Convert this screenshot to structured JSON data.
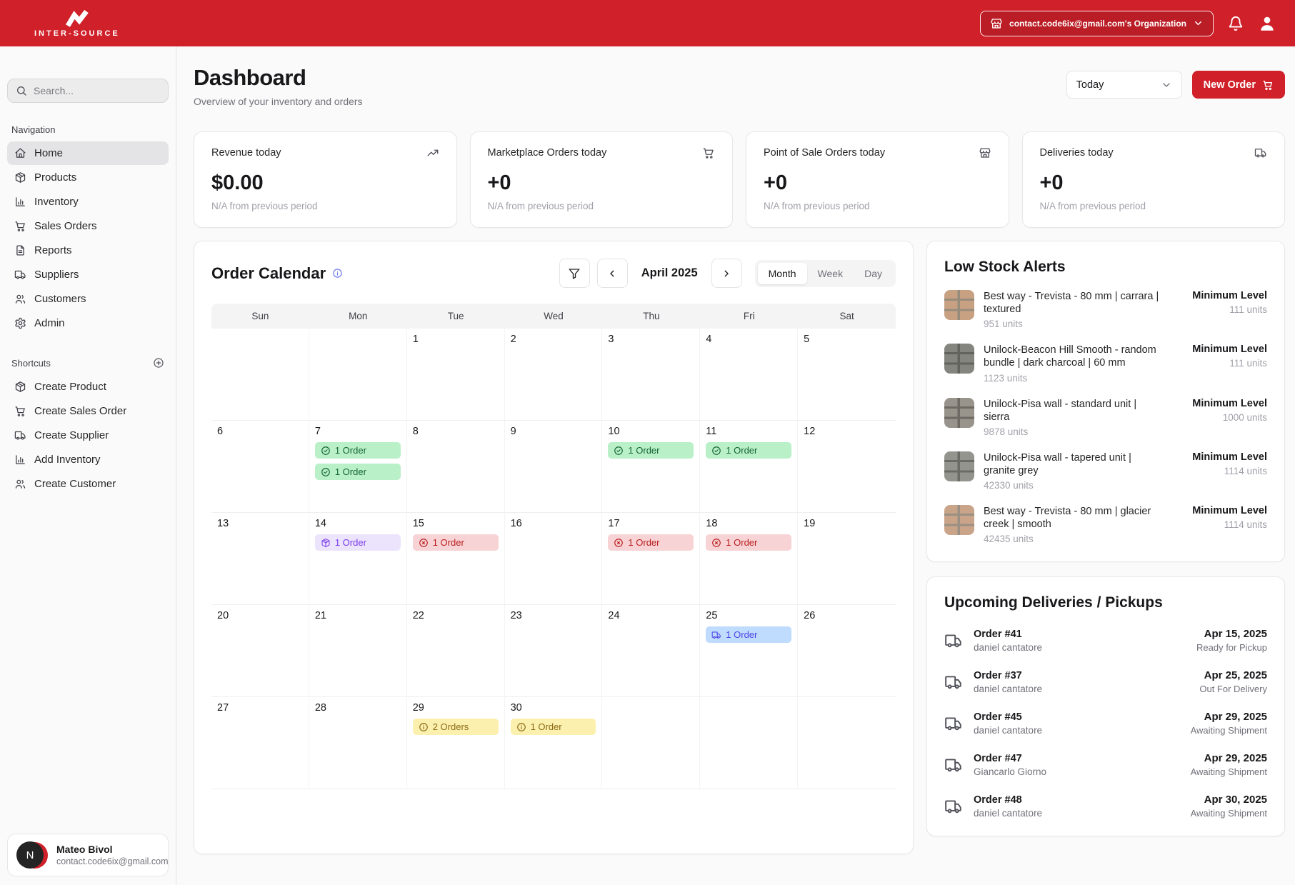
{
  "header": {
    "brand": "INTER-SOURCE",
    "org_button": "contact.code6ix@gmail.com's Organization"
  },
  "sidebar": {
    "search_placeholder": "Search...",
    "nav_label": "Navigation",
    "nav_items": [
      {
        "label": "Home",
        "icon": "home",
        "active": true
      },
      {
        "label": "Products",
        "icon": "package",
        "active": false
      },
      {
        "label": "Inventory",
        "icon": "chart",
        "active": false
      },
      {
        "label": "Sales Orders",
        "icon": "cart",
        "active": false
      },
      {
        "label": "Reports",
        "icon": "file",
        "active": false
      },
      {
        "label": "Suppliers",
        "icon": "truck",
        "active": false
      },
      {
        "label": "Customers",
        "icon": "users",
        "active": false
      },
      {
        "label": "Admin",
        "icon": "gear",
        "active": false
      }
    ],
    "shortcuts_label": "Shortcuts",
    "shortcut_items": [
      {
        "label": "Create Product",
        "icon": "package"
      },
      {
        "label": "Create Sales Order",
        "icon": "cart"
      },
      {
        "label": "Create Supplier",
        "icon": "truck"
      },
      {
        "label": "Add Inventory",
        "icon": "chart"
      },
      {
        "label": "Create Customer",
        "icon": "users"
      }
    ],
    "user": {
      "initial": "N",
      "name": "Mateo Bivol",
      "email": "contact.code6ix@gmail.com"
    }
  },
  "page": {
    "title": "Dashboard",
    "subtitle": "Overview of your inventory and orders",
    "period_select": "Today",
    "new_order_label": "New Order"
  },
  "stats": [
    {
      "label": "Revenue today",
      "icon": "trending-up",
      "value": "$0.00",
      "sub": "N/A from previous period"
    },
    {
      "label": "Marketplace Orders today",
      "icon": "cart",
      "value": "+0",
      "sub": "N/A from previous period"
    },
    {
      "label": "Point of Sale Orders today",
      "icon": "store",
      "value": "+0",
      "sub": "N/A from previous period"
    },
    {
      "label": "Deliveries today",
      "icon": "truck",
      "value": "+0",
      "sub": "N/A from previous period"
    }
  ],
  "calendar": {
    "title": "Order Calendar",
    "month_label": "April 2025",
    "views": [
      "Month",
      "Week",
      "Day"
    ],
    "active_view": "Month",
    "day_headers": [
      "Sun",
      "Mon",
      "Tue",
      "Wed",
      "Thu",
      "Fri",
      "Sat"
    ],
    "weeks": [
      [
        null,
        null,
        1,
        2,
        3,
        4,
        5
      ],
      [
        6,
        7,
        8,
        9,
        10,
        11,
        12
      ],
      [
        13,
        14,
        15,
        16,
        17,
        18,
        19
      ],
      [
        20,
        21,
        22,
        23,
        24,
        25,
        26
      ],
      [
        27,
        28,
        29,
        30,
        null,
        null,
        null
      ]
    ],
    "event_types": {
      "success": {
        "bg": "#b9f0c8",
        "fg": "#166534",
        "icon": "check-circle"
      },
      "cancelled": {
        "bg": "#f8d3d6",
        "fg": "#b91c1c",
        "icon": "x-circle"
      },
      "product": {
        "bg": "#ece4fc",
        "fg": "#7c3aed",
        "icon": "package"
      },
      "delivery": {
        "bg": "#bfdbfe",
        "fg": "#4f46e5",
        "icon": "truck"
      },
      "pending": {
        "bg": "#fcf0ae",
        "fg": "#8a6a16",
        "icon": "info"
      }
    },
    "events": [
      {
        "day": 7,
        "items": [
          {
            "label": "1 Order",
            "type": "success"
          },
          {
            "label": "1 Order",
            "type": "success"
          }
        ]
      },
      {
        "day": 10,
        "items": [
          {
            "label": "1 Order",
            "type": "success"
          }
        ]
      },
      {
        "day": 11,
        "items": [
          {
            "label": "1 Order",
            "type": "success"
          }
        ]
      },
      {
        "day": 14,
        "items": [
          {
            "label": "1 Order",
            "type": "product"
          }
        ]
      },
      {
        "day": 15,
        "items": [
          {
            "label": "1 Order",
            "type": "cancelled"
          }
        ]
      },
      {
        "day": 17,
        "items": [
          {
            "label": "1 Order",
            "type": "cancelled"
          }
        ]
      },
      {
        "day": 18,
        "items": [
          {
            "label": "1 Order",
            "type": "cancelled"
          }
        ]
      },
      {
        "day": 25,
        "items": [
          {
            "label": "1 Order",
            "type": "delivery"
          }
        ]
      },
      {
        "day": 29,
        "items": [
          {
            "label": "2 Orders",
            "type": "pending"
          }
        ]
      },
      {
        "day": 30,
        "items": [
          {
            "label": "1 Order",
            "type": "pending"
          }
        ]
      }
    ]
  },
  "low_stock": {
    "title": "Low Stock Alerts",
    "min_label": "Minimum Level",
    "items": [
      {
        "name": "Best way - Trevista - 80 mm | carrara | textured",
        "units": "951 units",
        "min_units": "111 units",
        "thumb": {
          "base": "#c8a183",
          "joint": "#968c7c"
        }
      },
      {
        "name": "Unilock-Beacon Hill Smooth - random bundle | dark charcoal | 60 mm",
        "units": "1123 units",
        "min_units": "111 units",
        "thumb": {
          "base": "#85857f",
          "joint": "#63635e"
        }
      },
      {
        "name": "Unilock-Pisa wall - standard unit | sierra",
        "units": "9878 units",
        "min_units": "1000 units",
        "thumb": {
          "base": "#98948c",
          "joint": "#6e6a63"
        }
      },
      {
        "name": "Unilock-Pisa wall - tapered unit | granite grey",
        "units": "42330 units",
        "min_units": "1114 units",
        "thumb": {
          "base": "#94948f",
          "joint": "#6b6b66"
        }
      },
      {
        "name": "Best way - Trevista - 80 mm | glacier creek | smooth",
        "units": "42435 units",
        "min_units": "1114 units",
        "thumb": {
          "base": "#c9a488",
          "joint": "#9a9083"
        }
      }
    ]
  },
  "deliveries": {
    "title": "Upcoming Deliveries / Pickups",
    "items": [
      {
        "order": "Order #41",
        "customer": "daniel cantatore",
        "date": "Apr 15, 2025",
        "status": "Ready for Pickup"
      },
      {
        "order": "Order #37",
        "customer": "daniel cantatore",
        "date": "Apr 25, 2025",
        "status": "Out For Delivery"
      },
      {
        "order": "Order #45",
        "customer": "daniel cantatore",
        "date": "Apr 29, 2025",
        "status": "Awaiting Shipment"
      },
      {
        "order": "Order #47",
        "customer": "Giancarlo Giorno",
        "date": "Apr 29, 2025",
        "status": "Awaiting Shipment"
      },
      {
        "order": "Order #48",
        "customer": "daniel cantatore",
        "date": "Apr 30, 2025",
        "status": "Awaiting Shipment"
      }
    ]
  }
}
